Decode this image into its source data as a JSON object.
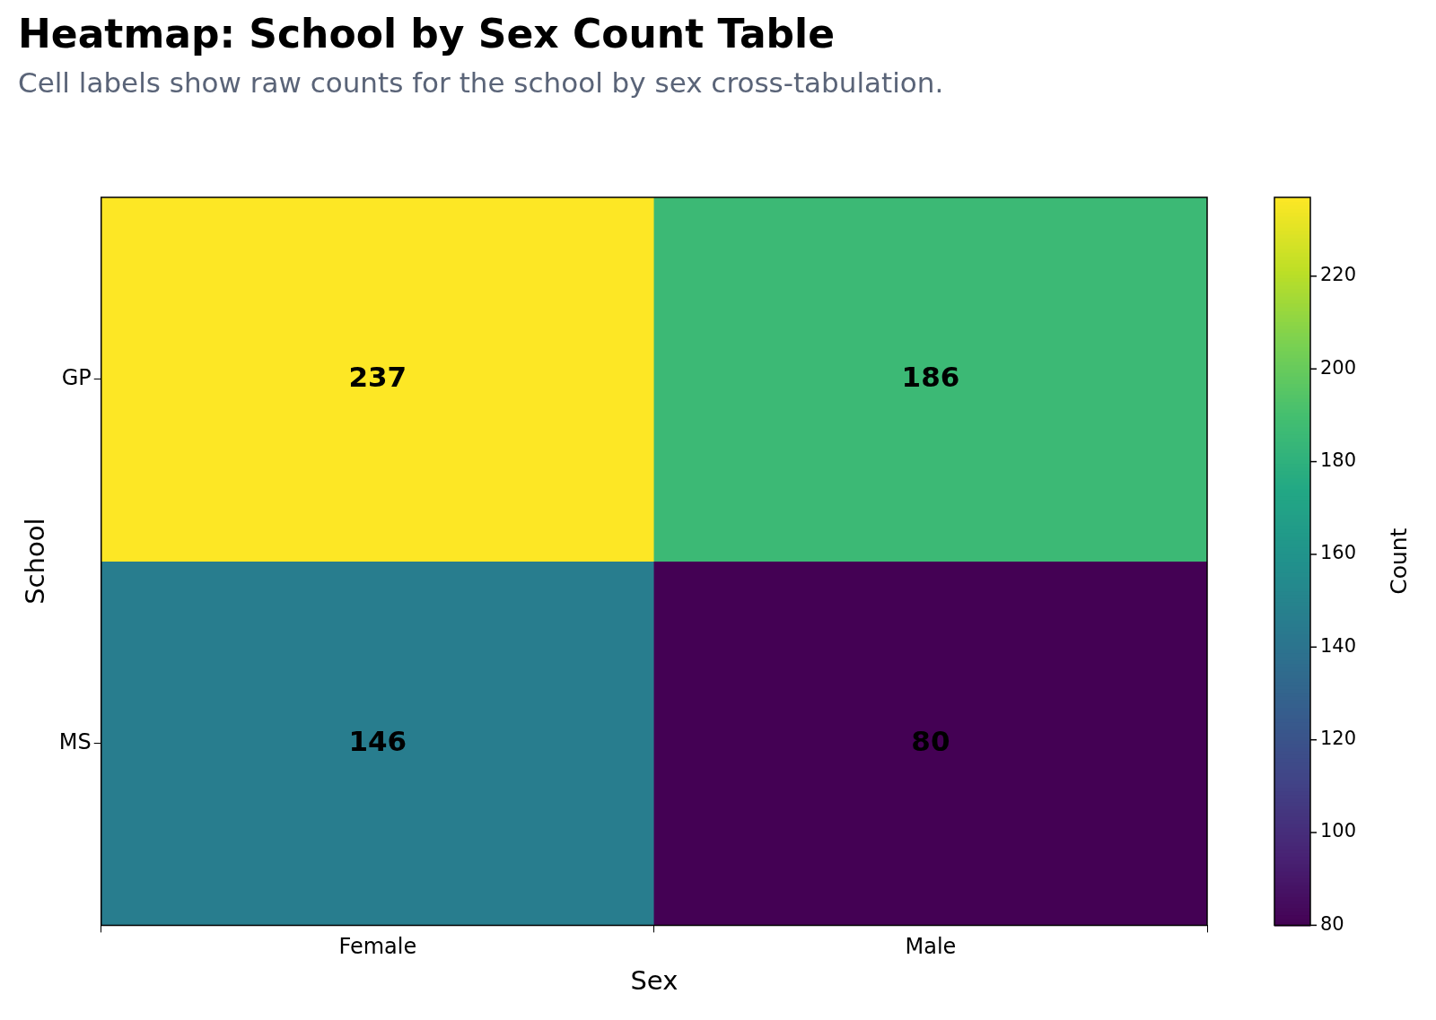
{
  "chart_data": {
    "type": "heatmap",
    "title": "Heatmap: School by Sex Count Table",
    "subtitle": "Cell labels show raw counts for the school by sex cross-tabulation.",
    "xlabel": "Sex",
    "ylabel": "School",
    "clabel": "Count",
    "categories": [
      "Female",
      "Male"
    ],
    "y_categories": [
      "GP",
      "MS"
    ],
    "cells": [
      [
        237,
        186
      ],
      [
        146,
        80
      ]
    ],
    "clim": [
      80,
      237
    ],
    "cticks": [
      80,
      100,
      120,
      140,
      160,
      180,
      200,
      220
    ],
    "data_labels": true,
    "grid": false
  }
}
